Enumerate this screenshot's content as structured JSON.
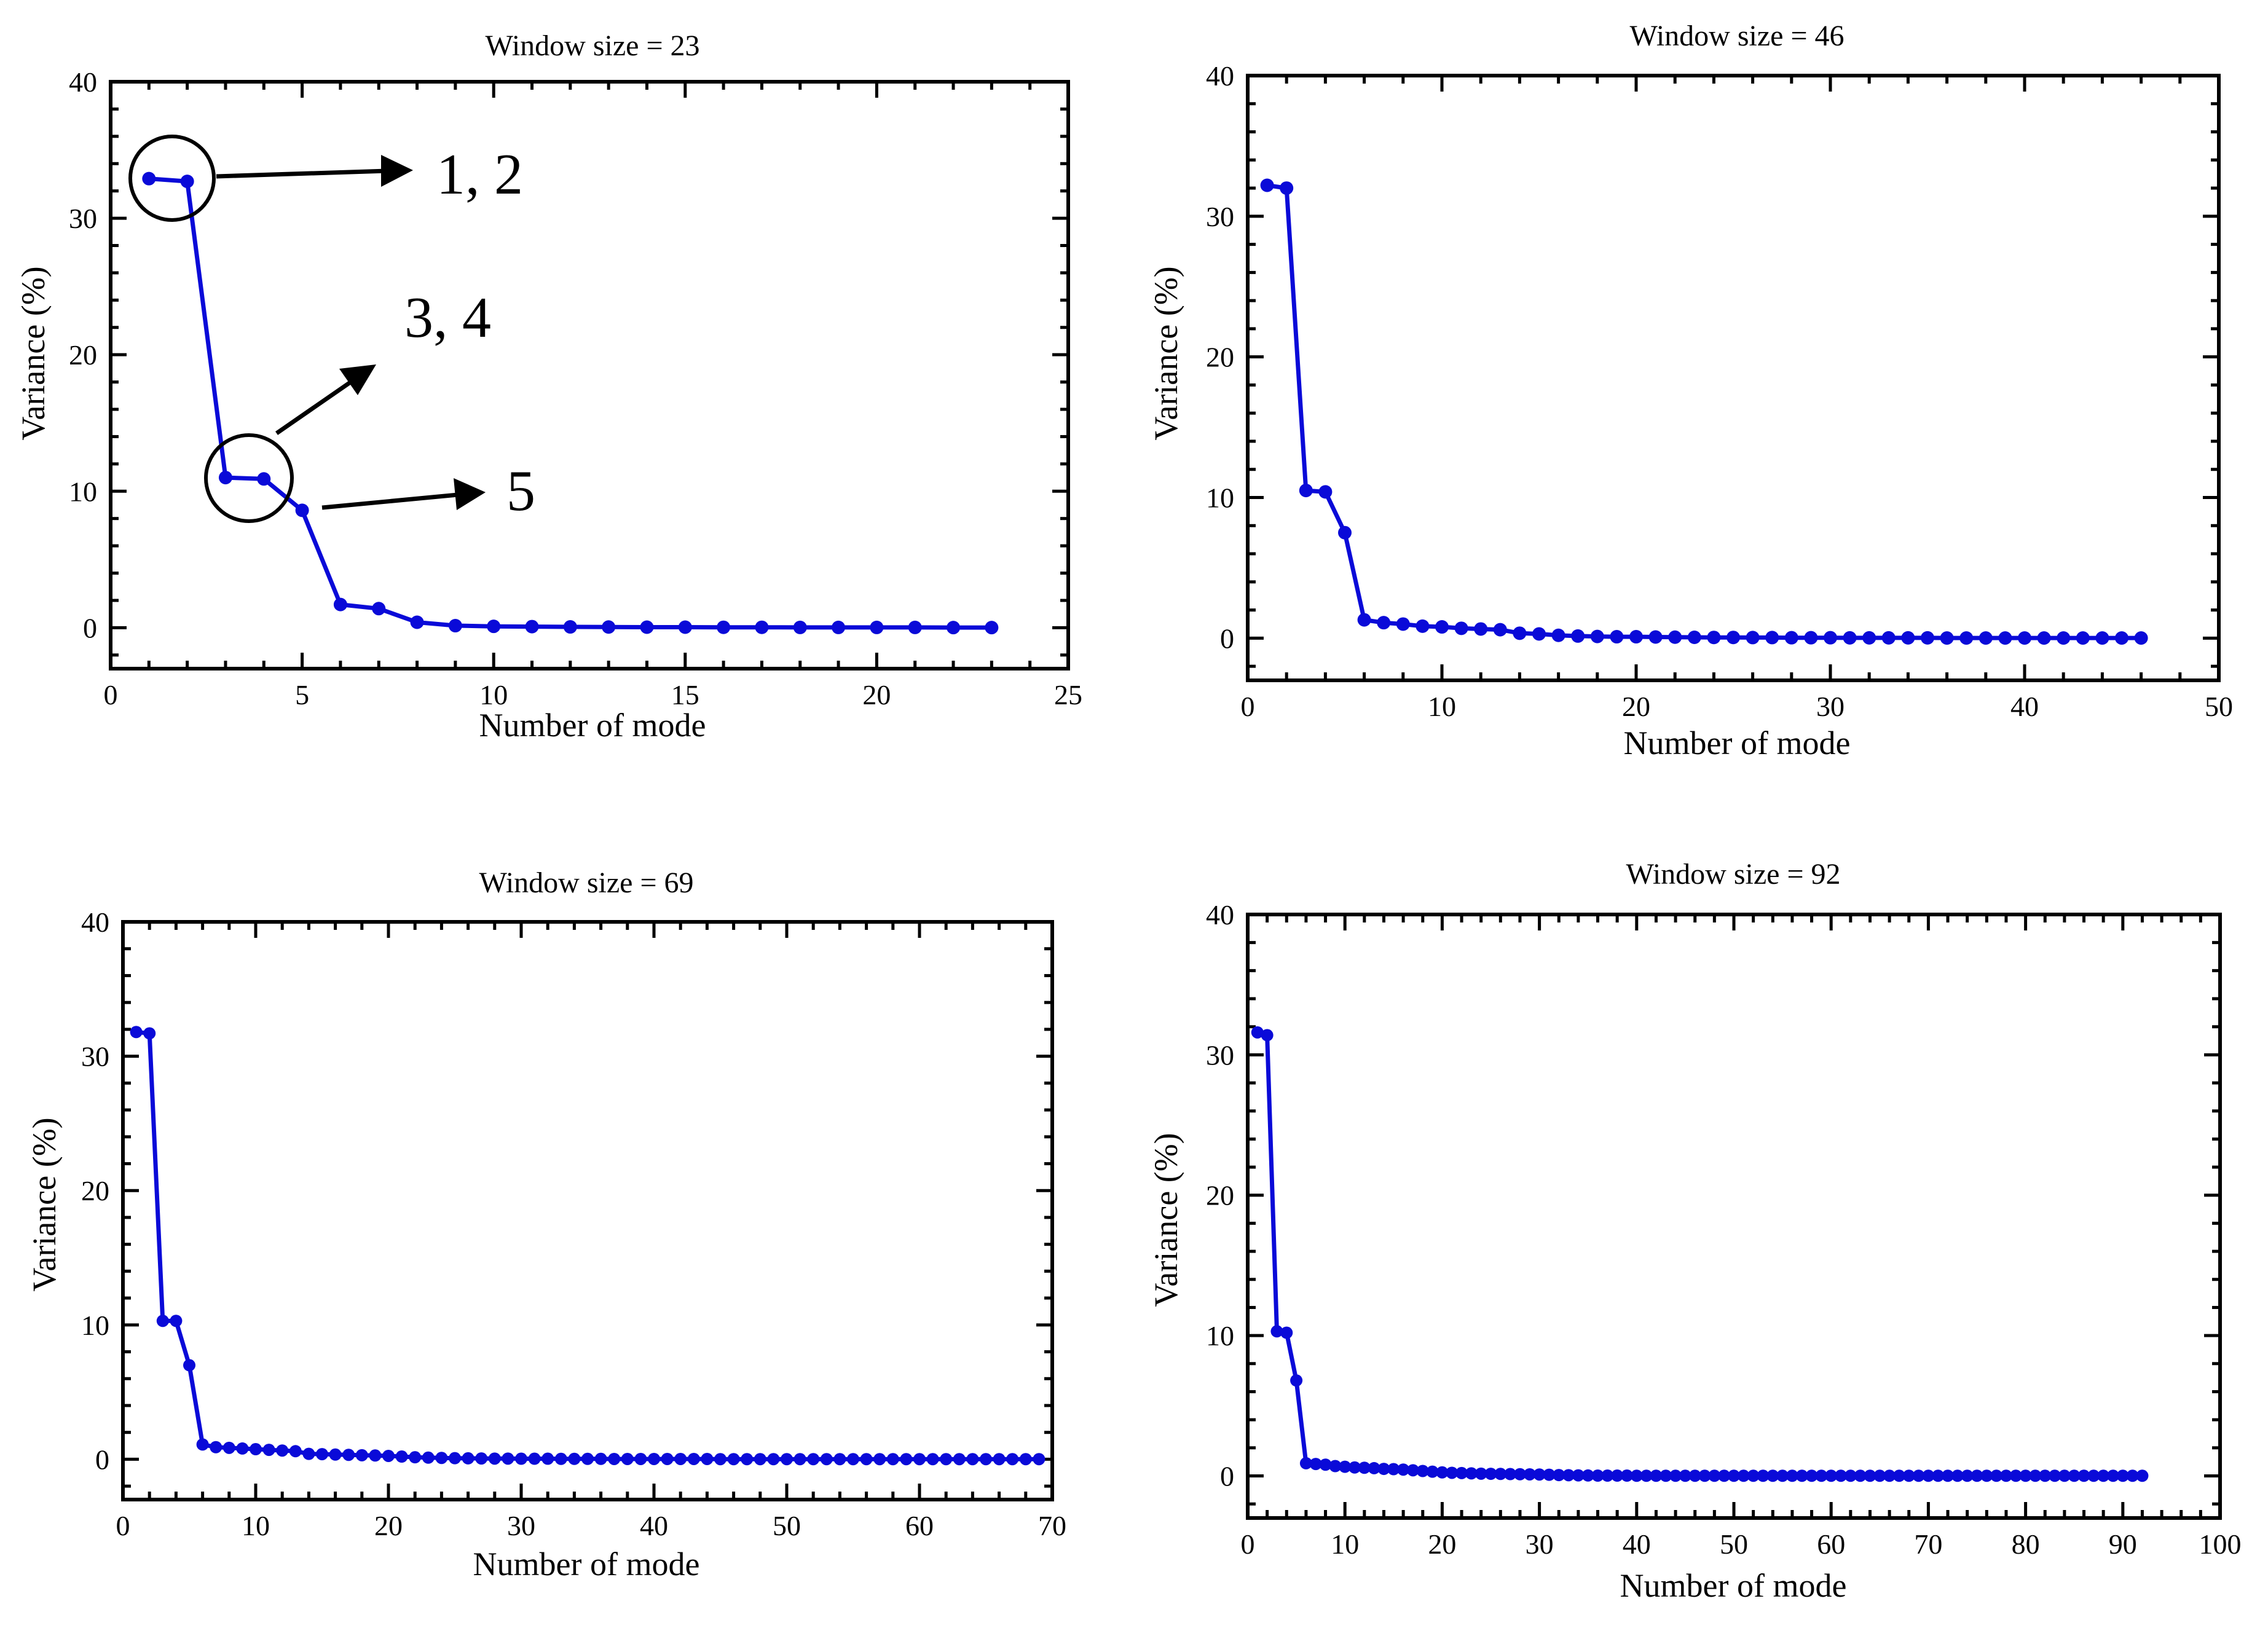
{
  "colors": {
    "series": "#0a0ad8",
    "axis": "#000000",
    "background": "#ffffff"
  },
  "annotations": {
    "label_1_2": "1, 2",
    "label_3_4": "3, 4",
    "label_5": "5"
  },
  "chart_data": [
    {
      "type": "line",
      "title": "Window size = 23",
      "xlabel": "Number of mode",
      "ylabel": "Variance (%)",
      "xlim": [
        0,
        25
      ],
      "ylim": [
        -3,
        40
      ],
      "xticks": [
        0,
        5,
        10,
        15,
        20,
        25
      ],
      "yticks": [
        0,
        10,
        20,
        30,
        40
      ],
      "xtick_labels": [
        "0",
        "5",
        "10",
        "15",
        "20",
        "25"
      ],
      "ytick_labels": [
        "0",
        "10",
        "20",
        "30",
        "40"
      ],
      "grid": false,
      "series": [
        {
          "name": "Window size = 23",
          "x": [
            1,
            2,
            3,
            4,
            5,
            6,
            7,
            8,
            9,
            10,
            11,
            12,
            13,
            14,
            15,
            16,
            17,
            18,
            19,
            20,
            21,
            22,
            23
          ],
          "values": [
            32.9,
            32.7,
            11.0,
            10.9,
            8.6,
            1.7,
            1.4,
            0.4,
            0.15,
            0.1,
            0.08,
            0.06,
            0.05,
            0.04,
            0.04,
            0.03,
            0.03,
            0.02,
            0.02,
            0.02,
            0.02,
            0.01,
            0.01
          ]
        }
      ]
    },
    {
      "type": "line",
      "title": "Window size = 46",
      "xlabel": "Number of mode",
      "ylabel": "Variance (%)",
      "xlim": [
        0,
        50
      ],
      "ylim": [
        -3,
        40
      ],
      "xticks": [
        0,
        10,
        20,
        30,
        40,
        50
      ],
      "yticks": [
        0,
        10,
        20,
        30,
        40
      ],
      "xtick_labels": [
        "0",
        "10",
        "20",
        "30",
        "40",
        "50"
      ],
      "ytick_labels": [
        "0",
        "10",
        "20",
        "30",
        "40"
      ],
      "grid": false,
      "series": [
        {
          "name": "Window size = 46",
          "x": [
            1,
            2,
            3,
            4,
            5,
            6,
            7,
            8,
            9,
            10,
            11,
            12,
            13,
            14,
            15,
            16,
            17,
            18,
            19,
            20,
            21,
            22,
            23,
            24,
            25,
            26,
            27,
            28,
            29,
            30,
            31,
            32,
            33,
            34,
            35,
            36,
            37,
            38,
            39,
            40,
            41,
            42,
            43,
            44,
            45,
            46
          ],
          "values": [
            32.2,
            32.0,
            10.5,
            10.4,
            7.5,
            1.3,
            1.1,
            1.0,
            0.85,
            0.8,
            0.7,
            0.65,
            0.6,
            0.35,
            0.3,
            0.2,
            0.15,
            0.12,
            0.1,
            0.1,
            0.08,
            0.07,
            0.06,
            0.05,
            0.05,
            0.04,
            0.04,
            0.03,
            0.03,
            0.03,
            0.02,
            0.02,
            0.02,
            0.02,
            0.02,
            0.01,
            0.01,
            0.01,
            0.01,
            0.01,
            0.01,
            0.01,
            0.01,
            0.01,
            0.01,
            0.01
          ]
        }
      ]
    },
    {
      "type": "line",
      "title": "Window size = 69",
      "xlabel": "Number of mode",
      "ylabel": "Variance (%)",
      "xlim": [
        0,
        70
      ],
      "ylim": [
        -3,
        40
      ],
      "xticks": [
        0,
        10,
        20,
        30,
        40,
        50,
        60,
        70
      ],
      "yticks": [
        0,
        10,
        20,
        30,
        40
      ],
      "xtick_labels": [
        "0",
        "10",
        "20",
        "30",
        "40",
        "50",
        "60",
        "70"
      ],
      "ytick_labels": [
        "0",
        "10",
        "20",
        "30",
        "40"
      ],
      "grid": false,
      "series": [
        {
          "name": "Window size = 69",
          "x": [
            1,
            2,
            3,
            4,
            5,
            6,
            7,
            8,
            9,
            10,
            11,
            12,
            13,
            14,
            15,
            16,
            17,
            18,
            19,
            20,
            21,
            22,
            23,
            24,
            25,
            26,
            27,
            28,
            29,
            30,
            31,
            32,
            33,
            34,
            35,
            36,
            37,
            38,
            39,
            40,
            41,
            42,
            43,
            44,
            45,
            46,
            47,
            48,
            49,
            50,
            51,
            52,
            53,
            54,
            55,
            56,
            57,
            58,
            59,
            60,
            61,
            62,
            63,
            64,
            65,
            66,
            67,
            68,
            69
          ],
          "values": [
            31.8,
            31.7,
            10.3,
            10.3,
            7.0,
            1.1,
            0.9,
            0.85,
            0.8,
            0.75,
            0.7,
            0.65,
            0.6,
            0.4,
            0.38,
            0.35,
            0.33,
            0.3,
            0.28,
            0.25,
            0.2,
            0.15,
            0.12,
            0.1,
            0.08,
            0.07,
            0.06,
            0.05,
            0.05,
            0.04,
            0.04,
            0.04,
            0.03,
            0.03,
            0.03,
            0.03,
            0.02,
            0.02,
            0.02,
            0.02,
            0.02,
            0.02,
            0.02,
            0.02,
            0.01,
            0.01,
            0.01,
            0.01,
            0.01,
            0.01,
            0.01,
            0.01,
            0.01,
            0.01,
            0.01,
            0.01,
            0.01,
            0.01,
            0.01,
            0.01,
            0.01,
            0.01,
            0.01,
            0.01,
            0.01,
            0.01,
            0.01,
            0.01,
            0.01
          ]
        }
      ]
    },
    {
      "type": "line",
      "title": "Window size = 92",
      "xlabel": "Number of mode",
      "ylabel": "Variance (%)",
      "xlim": [
        0,
        100
      ],
      "ylim": [
        -3,
        40
      ],
      "xticks": [
        0,
        10,
        20,
        30,
        40,
        50,
        60,
        70,
        80,
        90,
        100
      ],
      "yticks": [
        0,
        10,
        20,
        30,
        40
      ],
      "xtick_labels": [
        "0",
        "10",
        "20",
        "30",
        "40",
        "50",
        "60",
        "70",
        "80",
        "90",
        "100"
      ],
      "ytick_labels": [
        "0",
        "10",
        "20",
        "30",
        "40"
      ],
      "grid": false,
      "series": [
        {
          "name": "Window size = 92",
          "x": [
            1,
            2,
            3,
            4,
            5,
            6,
            7,
            8,
            9,
            10,
            11,
            12,
            13,
            14,
            15,
            16,
            17,
            18,
            19,
            20,
            21,
            22,
            23,
            24,
            25,
            26,
            27,
            28,
            29,
            30,
            31,
            32,
            33,
            34,
            35,
            36,
            37,
            38,
            39,
            40,
            41,
            42,
            43,
            44,
            45,
            46,
            47,
            48,
            49,
            50,
            51,
            52,
            53,
            54,
            55,
            56,
            57,
            58,
            59,
            60,
            61,
            62,
            63,
            64,
            65,
            66,
            67,
            68,
            69,
            70,
            71,
            72,
            73,
            74,
            75,
            76,
            77,
            78,
            79,
            80,
            81,
            82,
            83,
            84,
            85,
            86,
            87,
            88,
            89,
            90,
            91,
            92
          ],
          "values": [
            31.6,
            31.4,
            10.3,
            10.2,
            6.8,
            0.9,
            0.85,
            0.8,
            0.7,
            0.65,
            0.6,
            0.58,
            0.55,
            0.5,
            0.48,
            0.45,
            0.4,
            0.35,
            0.3,
            0.25,
            0.22,
            0.2,
            0.18,
            0.16,
            0.15,
            0.14,
            0.13,
            0.12,
            0.11,
            0.1,
            0.08,
            0.06,
            0.05,
            0.04,
            0.03,
            0.02,
            0.02,
            0.02,
            0.02,
            0.01,
            0.01,
            0.01,
            0.01,
            0.01,
            0.01,
            0.01,
            0.01,
            0.01,
            0.01,
            0.01,
            0.01,
            0.01,
            0.01,
            0.01,
            0.01,
            0.01,
            0.01,
            0.01,
            0.01,
            0.01,
            0.01,
            0.01,
            0.01,
            0.01,
            0.01,
            0.01,
            0.01,
            0.01,
            0.01,
            0.01,
            0.01,
            0.01,
            0.01,
            0.01,
            0.01,
            0.01,
            0.01,
            0.01,
            0.01,
            0.01,
            0.01,
            0.01,
            0.01,
            0.01,
            0.01,
            0.01,
            0.01,
            0.01,
            0.01,
            0.01,
            0.01,
            0.01
          ]
        }
      ]
    }
  ]
}
